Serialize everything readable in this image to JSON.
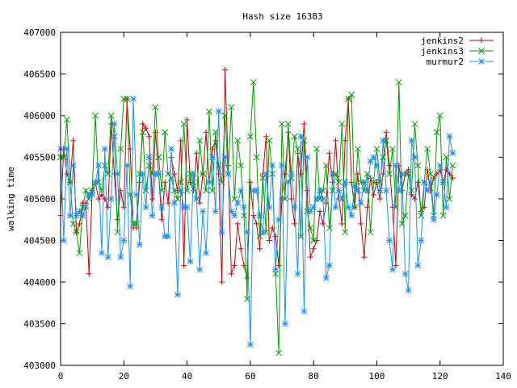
{
  "chart_data": {
    "type": "line",
    "title": "Hash size 16383",
    "xlabel": "",
    "ylabel": "walking time",
    "xlim": [
      0,
      140
    ],
    "ylim": [
      403000,
      407000
    ],
    "xticks": [
      0,
      20,
      40,
      60,
      80,
      100,
      120,
      140
    ],
    "yticks": [
      403000,
      403500,
      404000,
      404500,
      405000,
      405500,
      406000,
      406500,
      407000
    ],
    "grid": false,
    "legend_position": "top-right",
    "series": [
      {
        "name": "jenkins2",
        "color": "#cc0000",
        "marker": "plus",
        "x": [
          0,
          1,
          2,
          3,
          4,
          5,
          6,
          7,
          8,
          9,
          10,
          11,
          12,
          13,
          14,
          15,
          16,
          17,
          18,
          19,
          20,
          21,
          22,
          23,
          24,
          25,
          26,
          27,
          28,
          29,
          30,
          31,
          32,
          33,
          34,
          35,
          36,
          37,
          38,
          39,
          40,
          41,
          42,
          43,
          44,
          45,
          46,
          47,
          48,
          49,
          50,
          51,
          52,
          53,
          54,
          55,
          56,
          57,
          58,
          59,
          60,
          61,
          62,
          63,
          64,
          65,
          66,
          67,
          68,
          69,
          70,
          71,
          72,
          73,
          74,
          75,
          76,
          77,
          78,
          79,
          80,
          81,
          82,
          83,
          84,
          85,
          86,
          87,
          88,
          89,
          90,
          91,
          92,
          93,
          94,
          95,
          96,
          97,
          98,
          99,
          100,
          101,
          102,
          103,
          104,
          105,
          106,
          107,
          108,
          109,
          110,
          111,
          112,
          113,
          114,
          115,
          116,
          117,
          118,
          119,
          120,
          121,
          122,
          123,
          124
        ],
        "y": [
          404800,
          405600,
          405300,
          405200,
          405700,
          404600,
          404700,
          404950,
          404950,
          404100,
          405100,
          405200,
          405000,
          405050,
          405000,
          404900,
          405900,
          405300,
          404750,
          405100,
          404900,
          406200,
          405600,
          404650,
          404650,
          405200,
          405900,
          405850,
          405750,
          405000,
          405800,
          405300,
          404750,
          405200,
          404950,
          405500,
          405300,
          405100,
          405700,
          404200,
          405950,
          405200,
          405100,
          405550,
          404950,
          405300,
          405800,
          405200,
          405600,
          405700,
          405300,
          404000,
          406550,
          405400,
          404100,
          404200,
          404700,
          404400,
          404200,
          404050,
          405200,
          404800,
          404700,
          404400,
          405300,
          405750,
          404500,
          404650,
          404550,
          404200,
          405000,
          405300,
          405800,
          405000,
          404700,
          405550,
          405300,
          405900,
          405100,
          404300,
          404400,
          404500,
          404850,
          404700,
          404950,
          405550,
          405200,
          405700,
          405000,
          404700,
          405700,
          406200,
          405200,
          404900,
          405300,
          404700,
          404300,
          404900,
          405250,
          405050,
          405200,
          405000,
          405300,
          405800,
          405400,
          404900,
          404200,
          405400,
          405100,
          405300,
          405350,
          405050,
          405000,
          405200,
          404850,
          404900,
          405350,
          405100,
          405250,
          405300,
          405350,
          405200,
          405350,
          405300,
          405250
        ]
      },
      {
        "name": "jenkins3",
        "color": "#00a000",
        "marker": "cross",
        "x": [
          0,
          1,
          2,
          3,
          4,
          5,
          6,
          7,
          8,
          9,
          10,
          11,
          12,
          13,
          14,
          15,
          16,
          17,
          18,
          19,
          20,
          21,
          22,
          23,
          24,
          25,
          26,
          27,
          28,
          29,
          30,
          31,
          32,
          33,
          34,
          35,
          36,
          37,
          38,
          39,
          40,
          41,
          42,
          43,
          44,
          45,
          46,
          47,
          48,
          49,
          50,
          51,
          52,
          53,
          54,
          55,
          56,
          57,
          58,
          59,
          60,
          61,
          62,
          63,
          64,
          65,
          66,
          67,
          68,
          69,
          70,
          71,
          72,
          73,
          74,
          75,
          76,
          77,
          78,
          79,
          80,
          81,
          82,
          83,
          84,
          85,
          86,
          87,
          88,
          89,
          90,
          91,
          92,
          93,
          94,
          95,
          96,
          97,
          98,
          99,
          100,
          101,
          102,
          103,
          104,
          105,
          106,
          107,
          108,
          109,
          110,
          111,
          112,
          113,
          114,
          115,
          116,
          117,
          118,
          119,
          120,
          121,
          122,
          123,
          124
        ],
        "y": [
          405500,
          405500,
          405950,
          405200,
          404700,
          404600,
          404350,
          404900,
          405100,
          405000,
          405100,
          406000,
          405200,
          405100,
          405400,
          405300,
          406000,
          405750,
          404600,
          405600,
          406200,
          406200,
          405050,
          404700,
          404700,
          405300,
          405800,
          405100,
          405400,
          405300,
          406100,
          405500,
          405100,
          405800,
          405300,
          405250,
          405100,
          405000,
          405200,
          405900,
          405100,
          405300,
          405200,
          405000,
          405700,
          405300,
          405100,
          406050,
          405100,
          405800,
          405400,
          405200,
          406000,
          405300,
          406100,
          405000,
          405700,
          405400,
          404800,
          403800,
          405750,
          406400,
          405500,
          404550,
          405250,
          404600,
          405700,
          405300,
          404100,
          403150,
          405900,
          405000,
          405900,
          405250,
          405750,
          405600,
          404550,
          405700,
          404850,
          404650,
          404500,
          405600,
          405000,
          405100,
          405400,
          404650,
          405100,
          405300,
          405200,
          405900,
          404600,
          406200,
          406250,
          404900,
          405600,
          405200,
          405100,
          405300,
          404600,
          405200,
          405600,
          405200,
          405500,
          405700,
          405300,
          405600,
          404900,
          406400,
          404700,
          404800,
          405300,
          405100,
          405900,
          405400,
          404800,
          405200,
          405600,
          405300,
          404800,
          405800,
          406000,
          404800,
          405500,
          405000,
          405400
        ]
      },
      {
        "name": "murmur2",
        "color": "#1e90ff",
        "marker": "star",
        "x": [
          0,
          1,
          2,
          3,
          4,
          5,
          6,
          7,
          8,
          9,
          10,
          11,
          12,
          13,
          14,
          15,
          16,
          17,
          18,
          19,
          20,
          21,
          22,
          23,
          24,
          25,
          26,
          27,
          28,
          29,
          30,
          31,
          32,
          33,
          34,
          35,
          36,
          37,
          38,
          39,
          40,
          41,
          42,
          43,
          44,
          45,
          46,
          47,
          48,
          49,
          50,
          51,
          52,
          53,
          54,
          55,
          56,
          57,
          58,
          59,
          60,
          61,
          62,
          63,
          64,
          65,
          66,
          67,
          68,
          69,
          70,
          71,
          72,
          73,
          74,
          75,
          76,
          77,
          78,
          79,
          80,
          81,
          82,
          83,
          84,
          85,
          86,
          87,
          88,
          89,
          90,
          91,
          92,
          93,
          94,
          95,
          96,
          97,
          98,
          99,
          100,
          101,
          102,
          103,
          104,
          105,
          106,
          107,
          108,
          109,
          110,
          111,
          112,
          113,
          114,
          115,
          116,
          117,
          118,
          119,
          120,
          121,
          122,
          123,
          124
        ],
        "y": [
          405600,
          404500,
          405600,
          404800,
          405400,
          404800,
          404850,
          404800,
          404900,
          405050,
          405050,
          405200,
          405400,
          404350,
          405600,
          404300,
          405000,
          405900,
          405300,
          404300,
          404500,
          405400,
          403950,
          406200,
          405050,
          404450,
          405300,
          404900,
          405500,
          404800,
          405300,
          405300,
          404900,
          404550,
          404550,
          405600,
          404950,
          403850,
          405100,
          404900,
          404900,
          404250,
          405300,
          405000,
          404150,
          404850,
          404350,
          405200,
          405500,
          404850,
          406050,
          404600,
          405500,
          405300,
          404850,
          404800,
          404950,
          405100,
          404900,
          404600,
          403250,
          405100,
          405100,
          404800,
          404600,
          405300,
          404900,
          405400,
          404150,
          404750,
          405400,
          403500,
          405200,
          405300,
          404900,
          404100,
          405750,
          403650,
          405500,
          404850,
          404900,
          405000,
          405100,
          405000,
          404050,
          404200,
          405300,
          404900,
          405100,
          405000,
          405200,
          404900,
          404800,
          405150,
          405100,
          404950,
          405200,
          405100,
          405450,
          405500,
          405400,
          405100,
          405700,
          405100,
          404500,
          404150,
          405400,
          405100,
          405300,
          404100,
          403900,
          405700,
          405500,
          404200,
          404500,
          405200,
          405100,
          405200,
          404750,
          405050,
          405400,
          405200,
          404900,
          405750,
          405550
        ]
      }
    ]
  }
}
